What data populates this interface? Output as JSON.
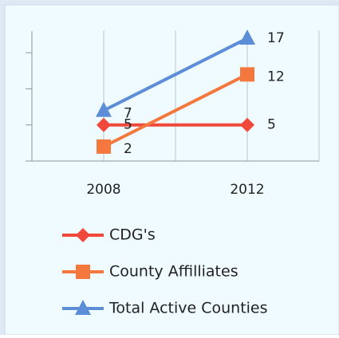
{
  "chart_data": {
    "type": "line",
    "categories": [
      "2008",
      "2012"
    ],
    "series": [
      {
        "name": "CDG's",
        "color": "#f0483a",
        "marker": "diamond",
        "values": [
          5,
          5
        ]
      },
      {
        "name": "County Affilliates",
        "color": "#f4773e",
        "marker": "square",
        "values": [
          2,
          12
        ]
      },
      {
        "name": "Total Active Counties",
        "color": "#5b8ed6",
        "marker": "triangle",
        "values": [
          7,
          17
        ]
      }
    ],
    "ylim": [
      0,
      18
    ],
    "yticks": [
      0,
      5,
      10,
      15
    ],
    "grid": true,
    "legend": "bottom"
  }
}
